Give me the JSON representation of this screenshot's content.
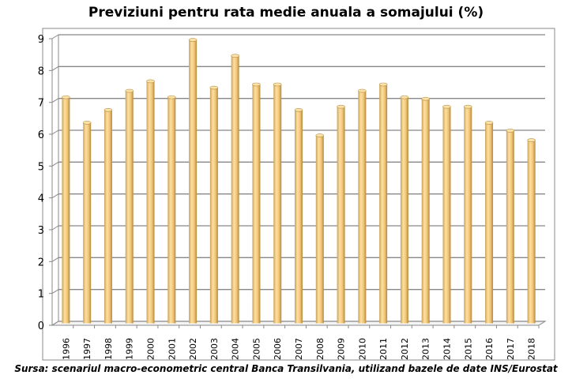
{
  "chart_data": {
    "type": "bar",
    "title": "Previziuni pentru rata medie anuala a somajului (%)",
    "xlabel": "",
    "ylabel": "",
    "ylim": [
      0,
      9
    ],
    "yticks": [
      "0",
      "1",
      "2",
      "3",
      "4",
      "5",
      "6",
      "7",
      "8",
      "9"
    ],
    "grid": true,
    "categories": [
      "1996",
      "1997",
      "1998",
      "1999",
      "2000",
      "2001",
      "2002",
      "2003",
      "2004",
      "2005",
      "2006",
      "2007",
      "2008",
      "2009",
      "2010",
      "2011",
      "2012",
      "2013",
      "2014",
      "2015",
      "2016",
      "2017",
      "2018"
    ],
    "values": [
      7.1,
      6.3,
      6.7,
      7.3,
      7.6,
      7.1,
      8.9,
      7.4,
      8.4,
      7.5,
      7.5,
      6.7,
      5.9,
      6.8,
      7.3,
      7.5,
      7.1,
      7.05,
      6.8,
      6.8,
      6.3,
      6.05,
      5.75
    ],
    "bar_color": "#f3c97a"
  },
  "source": "Sursa: scenariul macro-econometric central Banca Transilvania, utilizand bazele de date INS/Eurostat"
}
